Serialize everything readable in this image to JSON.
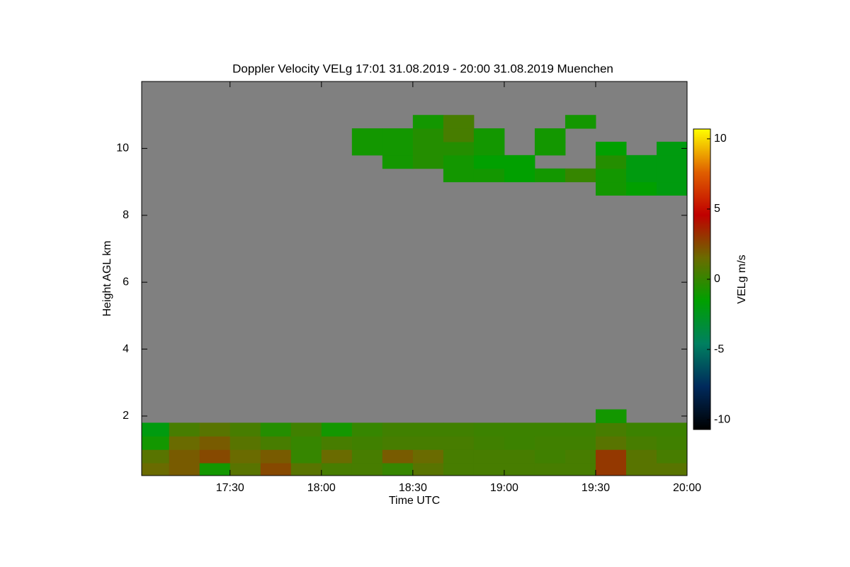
{
  "chart_data": {
    "type": "heatmap",
    "title": "Doppler Velocity VELg   17:01 31.08.2019 - 20:00 31.08.2019 Muenchen",
    "x_label": "Time UTC",
    "y_label": "Height AGL km",
    "colorbar_label": "VELg m/s",
    "xlim": [
      17.0167,
      20
    ],
    "ylim": [
      0.22,
      12
    ],
    "clim": [
      -10.7,
      10.7
    ],
    "xticks": [
      {
        "value": 17.5,
        "label": "17:30"
      },
      {
        "value": 18,
        "label": "18:00"
      },
      {
        "value": 18.5,
        "label": "18:30"
      },
      {
        "value": 19,
        "label": "19:00"
      },
      {
        "value": 19.5,
        "label": "19:30"
      },
      {
        "value": 20,
        "label": "20:00"
      }
    ],
    "yticks": [
      2,
      4,
      6,
      8,
      10
    ],
    "cticks": [
      -10,
      -5,
      0,
      5,
      10
    ],
    "background_color": "#808080",
    "colorscale": [
      "#000000",
      "#002a5c",
      "#008060",
      "#00a000",
      "#6b6b00",
      "#c00000",
      "#e06000",
      "#ffff00"
    ],
    "x_edges": [
      17.0167,
      17.1667,
      17.3333,
      17.5,
      17.6667,
      17.8333,
      18,
      18.1667,
      18.3333,
      18.5,
      18.6667,
      18.8333,
      19,
      19.1667,
      19.3333,
      19.5,
      19.6667,
      19.8333,
      20
    ],
    "y_edges": [
      0.22,
      0.6,
      1.0,
      1.4,
      1.8,
      2.2,
      8.6,
      9.0,
      9.4,
      9.8,
      10.2,
      10.6,
      11.0
    ],
    "z": [
      [
        1.5,
        2,
        -1,
        1,
        2.5,
        1,
        0.5,
        0.5,
        0,
        1,
        0.5,
        0.5,
        0.5,
        0.5,
        0.5,
        3,
        1,
        1
      ],
      [
        1,
        2,
        2.5,
        1.5,
        2,
        0,
        1.5,
        0.5,
        2,
        1.5,
        0.5,
        0.5,
        0.5,
        0.3,
        0.5,
        3,
        1,
        0.5
      ],
      [
        -1,
        1.5,
        2,
        1,
        0.5,
        0,
        0.5,
        0.3,
        0.5,
        0.5,
        0.5,
        0.3,
        0.2,
        0.3,
        0.3,
        1,
        0.5,
        0.3
      ],
      [
        -2,
        0.5,
        1,
        0.5,
        -0.5,
        0.3,
        -1,
        0,
        0.3,
        0.3,
        0.3,
        0.2,
        0.2,
        0.2,
        0.2,
        0.5,
        0.2,
        0.2
      ],
      [
        null,
        null,
        null,
        null,
        null,
        null,
        null,
        null,
        null,
        null,
        null,
        null,
        null,
        null,
        null,
        -1,
        null,
        null
      ],
      [
        null,
        null,
        null,
        null,
        null,
        null,
        null,
        null,
        null,
        null,
        null,
        null,
        null,
        null,
        null,
        null,
        null,
        null
      ],
      [
        null,
        null,
        null,
        null,
        null,
        null,
        null,
        null,
        null,
        null,
        null,
        null,
        null,
        null,
        null,
        -1,
        -1.5,
        -2
      ],
      [
        null,
        null,
        null,
        null,
        null,
        null,
        null,
        null,
        null,
        null,
        -1,
        -1,
        -1.5,
        -1,
        0,
        -1,
        -2,
        -2
      ],
      [
        null,
        null,
        null,
        null,
        null,
        null,
        null,
        null,
        -1,
        -0.5,
        -1,
        -1.5,
        -1.5,
        null,
        null,
        -0.5,
        -2,
        -2
      ],
      [
        null,
        null,
        null,
        null,
        null,
        null,
        null,
        -1,
        -1,
        -0.5,
        -0.5,
        -1,
        null,
        -1,
        null,
        -1.5,
        null,
        -2
      ],
      [
        null,
        null,
        null,
        null,
        null,
        null,
        null,
        -1,
        -1,
        -0.5,
        0.5,
        -1,
        null,
        -1,
        null,
        null,
        null,
        null
      ],
      [
        null,
        null,
        null,
        null,
        null,
        null,
        null,
        null,
        null,
        -1,
        0.5,
        null,
        null,
        null,
        -1,
        null,
        null,
        null
      ]
    ]
  }
}
